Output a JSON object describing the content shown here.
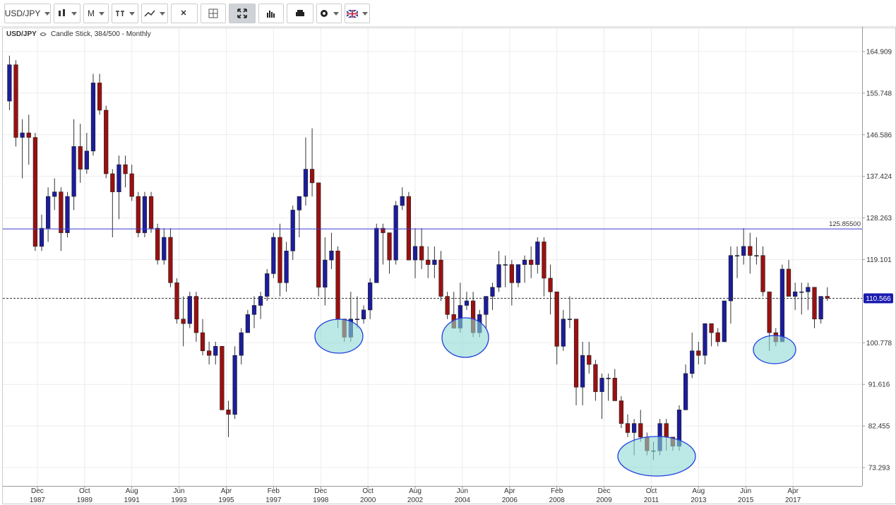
{
  "toolbar": {
    "symbol": "USD/JPY",
    "interval": "M"
  },
  "chart_data": {
    "type": "candlestick",
    "symbol": "USD/JPY",
    "subtitle": "Candle Stick, 384/500 - Monthly",
    "up_color": "#1c1c9c",
    "down_color": "#9b1010",
    "grid": true,
    "ylim": [
      69.25,
      170.04
    ],
    "yticks": [
      73.293,
      82.455,
      91.616,
      100.778,
      119.101,
      128.263,
      137.424,
      146.586,
      155.748,
      164.909
    ],
    "xlim": [
      -1.03,
      132.4
    ],
    "xticks": [
      {
        "value": 4.33,
        "label": [
          "Dec",
          "1987"
        ]
      },
      {
        "value": 11.67,
        "label": [
          "Oct",
          "1989"
        ]
      },
      {
        "value": 19,
        "label": [
          "Aug",
          "1991"
        ]
      },
      {
        "value": 26.33,
        "label": [
          "Jun",
          "1993"
        ]
      },
      {
        "value": 33.67,
        "label": [
          "Apr",
          "1995"
        ]
      },
      {
        "value": 41,
        "label": [
          "Feb",
          "1997"
        ]
      },
      {
        "value": 48.33,
        "label": [
          "Dec",
          "1998"
        ]
      },
      {
        "value": 55.67,
        "label": [
          "Oct",
          "2000"
        ]
      },
      {
        "value": 63,
        "label": [
          "Aug",
          "2002"
        ]
      },
      {
        "value": 70.33,
        "label": [
          "Jun",
          "2004"
        ]
      },
      {
        "value": 77.67,
        "label": [
          "Apr",
          "2006"
        ]
      },
      {
        "value": 85,
        "label": [
          "Feb",
          "2008"
        ]
      },
      {
        "value": 92.33,
        "label": [
          "Dec",
          "2009"
        ]
      },
      {
        "value": 99.67,
        "label": [
          "Oct",
          "2011"
        ]
      },
      {
        "value": 107,
        "label": [
          "Aug",
          "2013"
        ]
      },
      {
        "value": 114.33,
        "label": [
          "Jun",
          "2015"
        ]
      },
      {
        "value": 121.67,
        "label": [
          "Apr",
          "2017"
        ]
      }
    ],
    "hline": {
      "value": 125.855,
      "label": "125.85500",
      "color": "#3a3ad0"
    },
    "current_price": 110.566,
    "candles": [
      [
        154,
        164,
        152,
        162
      ],
      [
        162,
        163,
        144,
        146
      ],
      [
        146,
        150,
        137,
        147
      ],
      [
        147,
        151,
        140,
        146
      ],
      [
        146,
        147,
        121,
        122
      ],
      [
        122,
        129,
        121,
        126
      ],
      [
        126,
        135,
        123,
        133
      ],
      [
        133,
        137,
        130,
        134
      ],
      [
        134,
        135,
        121,
        125
      ],
      [
        125,
        134,
        124,
        133
      ],
      [
        133,
        150,
        130,
        144
      ],
      [
        144,
        149,
        136,
        139
      ],
      [
        139,
        147,
        138,
        143
      ],
      [
        143,
        160,
        142,
        158
      ],
      [
        158,
        160,
        151,
        152
      ],
      [
        152,
        153,
        137,
        138
      ],
      [
        138,
        139,
        124,
        134
      ],
      [
        134,
        142,
        128,
        140
      ],
      [
        140,
        142,
        135,
        138
      ],
      [
        138,
        140,
        132,
        133
      ],
      [
        133,
        134,
        124,
        125
      ],
      [
        125,
        134,
        124,
        133
      ],
      [
        133,
        134,
        125,
        126
      ],
      [
        126,
        127,
        118,
        119
      ],
      [
        119,
        126,
        118,
        124
      ],
      [
        124,
        126,
        113,
        114
      ],
      [
        114,
        115,
        105,
        106
      ],
      [
        106,
        111,
        100,
        105
      ],
      [
        105,
        112,
        104,
        111
      ],
      [
        111,
        112,
        101,
        103
      ],
      [
        103,
        106,
        98,
        99
      ],
      [
        99,
        101,
        96,
        98
      ],
      [
        98,
        101,
        96,
        100
      ],
      [
        100,
        100,
        86,
        86
      ],
      [
        86,
        88,
        80,
        85
      ],
      [
        85,
        100,
        84,
        98
      ],
      [
        98,
        104,
        96,
        103
      ],
      [
        103,
        108,
        103,
        107
      ],
      [
        107,
        111,
        104,
        109
      ],
      [
        109,
        112,
        106,
        111
      ],
      [
        111,
        117,
        110,
        116
      ],
      [
        116,
        125,
        115,
        124
      ],
      [
        124,
        127,
        111,
        114
      ],
      [
        114,
        123,
        112,
        121
      ],
      [
        121,
        131,
        119,
        130
      ],
      [
        130,
        133,
        124,
        133
      ],
      [
        133,
        146,
        131,
        139
      ],
      [
        139,
        148,
        133,
        136
      ],
      [
        136,
        136,
        111,
        113
      ],
      [
        113,
        124,
        109,
        119
      ],
      [
        119,
        125,
        117,
        121
      ],
      [
        121,
        122,
        104,
        106
      ],
      [
        106,
        106,
        101,
        102
      ],
      [
        102,
        112,
        101,
        106
      ],
      [
        106,
        111,
        104,
        106
      ],
      [
        106,
        109,
        105,
        108
      ],
      [
        108,
        115,
        106,
        114
      ],
      [
        114,
        127,
        114,
        126
      ],
      [
        126,
        127,
        118,
        125
      ],
      [
        125,
        125,
        116,
        119
      ],
      [
        119,
        132,
        118,
        131
      ],
      [
        131,
        135,
        130,
        133
      ],
      [
        133,
        134,
        119,
        119
      ],
      [
        119,
        126,
        115,
        122
      ],
      [
        122,
        126,
        117,
        119
      ],
      [
        119,
        122,
        115,
        118
      ],
      [
        118,
        122,
        115,
        119
      ],
      [
        119,
        121,
        110,
        111
      ],
      [
        111,
        112,
        106,
        107
      ],
      [
        107,
        112,
        104,
        104
      ],
      [
        104,
        114,
        103,
        109
      ],
      [
        109,
        112,
        108,
        110
      ],
      [
        110,
        112,
        102,
        103
      ],
      [
        103,
        108,
        102,
        107
      ],
      [
        107,
        111,
        104,
        111
      ],
      [
        111,
        114,
        108,
        113
      ],
      [
        113,
        121,
        112,
        118
      ],
      [
        118,
        120,
        113,
        118
      ],
      [
        118,
        119,
        109,
        114
      ],
      [
        114,
        118,
        113,
        118
      ],
      [
        118,
        120,
        114,
        119
      ],
      [
        119,
        122,
        115,
        118
      ],
      [
        118,
        124,
        116,
        123
      ],
      [
        123,
        124,
        111,
        115
      ],
      [
        115,
        118,
        107,
        112
      ],
      [
        112,
        112,
        96,
        100
      ],
      [
        100,
        108,
        99,
        106
      ],
      [
        106,
        111,
        104,
        106
      ],
      [
        106,
        106,
        87,
        91
      ],
      [
        91,
        101,
        87,
        98
      ],
      [
        98,
        101,
        94,
        96
      ],
      [
        96,
        97,
        88,
        90
      ],
      [
        90,
        94,
        84,
        93
      ],
      [
        93,
        94,
        88,
        93
      ],
      [
        93,
        95,
        88,
        88
      ],
      [
        88,
        89,
        82,
        83
      ],
      [
        83,
        85,
        80,
        81
      ],
      [
        81,
        84,
        76,
        83
      ],
      [
        83,
        86,
        79,
        80
      ],
      [
        80,
        81,
        76,
        77
      ],
      [
        77,
        79,
        75,
        77
      ],
      [
        77,
        84,
        76,
        83
      ],
      [
        83,
        84,
        77,
        80
      ],
      [
        80,
        80,
        77,
        78
      ],
      [
        78,
        87,
        77,
        86
      ],
      [
        86,
        96,
        86,
        94
      ],
      [
        94,
        103,
        93,
        99
      ],
      [
        99,
        101,
        96,
        98
      ],
      [
        98,
        105,
        96,
        105
      ],
      [
        105,
        105,
        100,
        103
      ],
      [
        103,
        104,
        100,
        101
      ],
      [
        101,
        110,
        101,
        110
      ],
      [
        110,
        122,
        105,
        120
      ],
      [
        120,
        122,
        115,
        120
      ],
      [
        120,
        126,
        118,
        122
      ],
      [
        122,
        125,
        116,
        120
      ],
      [
        120,
        124,
        118,
        120
      ],
      [
        120,
        122,
        111,
        112
      ],
      [
        112,
        112,
        99,
        103
      ],
      [
        103,
        104,
        100,
        101
      ],
      [
        101,
        118,
        101,
        117
      ],
      [
        117,
        119,
        111,
        111
      ],
      [
        111,
        114,
        108,
        112
      ],
      [
        112,
        114,
        107,
        112
      ],
      [
        112,
        114,
        108,
        113
      ],
      [
        113,
        113,
        104,
        106
      ],
      [
        106,
        111,
        105,
        111
      ],
      [
        111,
        113,
        110,
        110.566
      ]
    ]
  }
}
